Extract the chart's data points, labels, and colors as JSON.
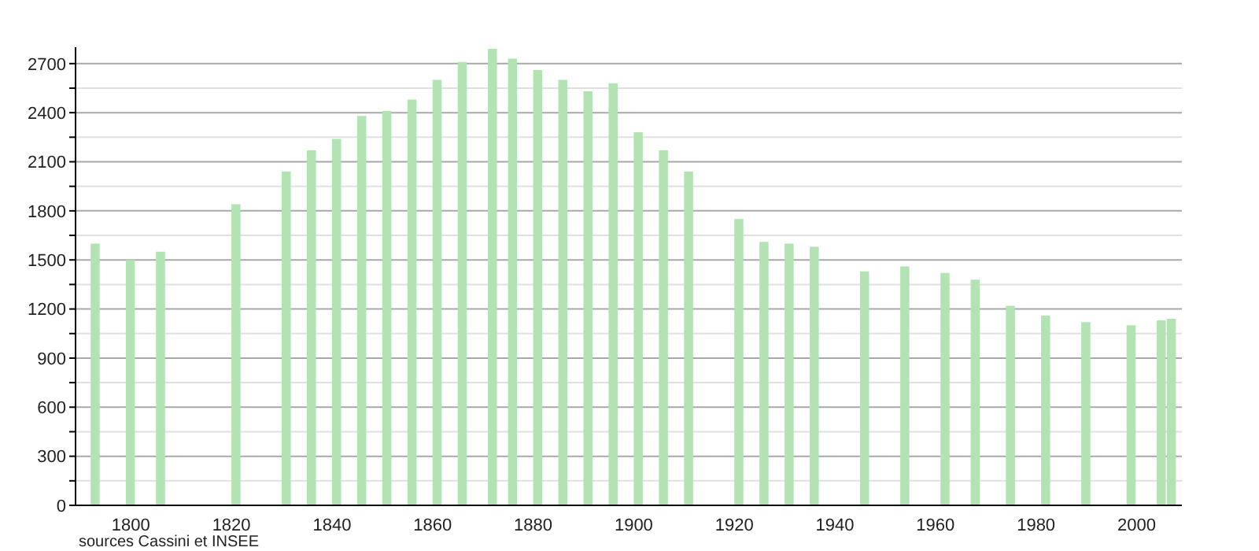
{
  "chart_data": {
    "type": "bar",
    "color": "#b3e3b3",
    "x": [
      1793,
      1800,
      1806,
      1821,
      1831,
      1836,
      1841,
      1846,
      1851,
      1856,
      1861,
      1866,
      1872,
      1876,
      1881,
      1886,
      1891,
      1896,
      1901,
      1906,
      1911,
      1921,
      1926,
      1931,
      1936,
      1946,
      1954,
      1962,
      1968,
      1975,
      1982,
      1990,
      1999,
      2005,
      2007
    ],
    "values": [
      1600,
      1500,
      1550,
      1840,
      2040,
      2170,
      2240,
      2380,
      2410,
      2480,
      2600,
      2710,
      2790,
      2730,
      2660,
      2600,
      2530,
      2580,
      2280,
      2170,
      2040,
      1750,
      1610,
      1600,
      1580,
      1430,
      1460,
      1420,
      1380,
      1220,
      1160,
      1120,
      1100,
      1130,
      1140
    ],
    "xlim": [
      1789,
      2009
    ],
    "xticks": [
      1800,
      1820,
      1840,
      1860,
      1880,
      1900,
      1920,
      1940,
      1960,
      1980,
      2000
    ],
    "ylim": [
      0,
      2800
    ],
    "yticks": [
      0,
      {
        "value": 150,
        "label": null
      },
      300,
      {
        "value": 450,
        "label": null
      },
      600,
      {
        "value": 750,
        "label": null
      },
      900,
      {
        "value": 1050,
        "label": null
      },
      1200,
      {
        "value": 1350,
        "label": null
      },
      1500,
      {
        "value": 1650,
        "label": null
      },
      1800,
      {
        "value": 1950,
        "label": null
      },
      2100,
      {
        "value": 2250,
        "label": null
      },
      2400,
      {
        "value": 2550,
        "label": null
      },
      2700
    ],
    "grid": "y",
    "annotations": [
      "sources Cassini et INSEE"
    ]
  }
}
